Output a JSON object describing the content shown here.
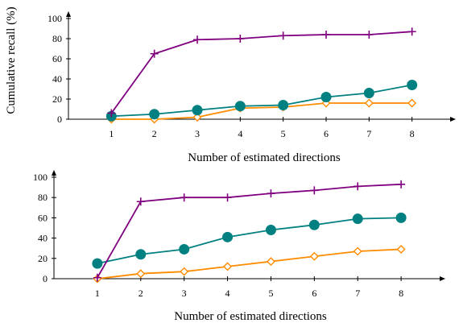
{
  "chart_data": [
    {
      "type": "line",
      "xlabel": "Number of estimated directions",
      "ylabel": "Cumulative recall (%)",
      "x": [
        1,
        2,
        3,
        4,
        5,
        6,
        7,
        8
      ],
      "xlim": [
        0,
        9
      ],
      "ylim": [
        0,
        100
      ],
      "yticks": [
        0,
        20,
        40,
        60,
        80,
        100
      ],
      "grid": false,
      "legend": "none",
      "series": [
        {
          "color": "#800080",
          "marker": "plus",
          "values": [
            6,
            65,
            79,
            80,
            83,
            84,
            84,
            87
          ]
        },
        {
          "color": "#008080",
          "marker": "circle",
          "values": [
            3,
            5,
            9,
            13,
            14,
            22,
            26,
            34
          ]
        },
        {
          "color": "#ff8c00",
          "marker": "diamond",
          "values": [
            0,
            0,
            2,
            11,
            12,
            16,
            16,
            16
          ]
        }
      ]
    },
    {
      "type": "line",
      "xlabel": "Number of estimated directions",
      "ylabel": "",
      "x": [
        1,
        2,
        3,
        4,
        5,
        6,
        7,
        8
      ],
      "xlim": [
        0,
        9
      ],
      "ylim": [
        0,
        100
      ],
      "yticks": [
        0,
        20,
        40,
        60,
        80,
        100
      ],
      "grid": false,
      "legend": "none",
      "series": [
        {
          "color": "#800080",
          "marker": "plus",
          "values": [
            1,
            76,
            80,
            80,
            84,
            87,
            91,
            93
          ]
        },
        {
          "color": "#008080",
          "marker": "circle",
          "values": [
            15,
            24,
            29,
            41,
            48,
            53,
            59,
            60
          ]
        },
        {
          "color": "#ff8c00",
          "marker": "diamond",
          "values": [
            0,
            5,
            7,
            12,
            17,
            22,
            27,
            29
          ]
        }
      ]
    }
  ]
}
